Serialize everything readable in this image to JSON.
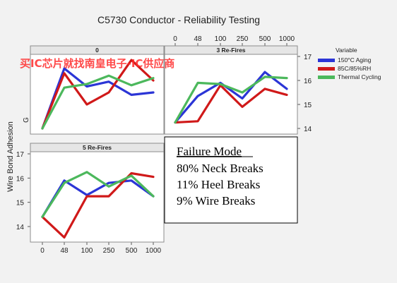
{
  "watermark": "买IC芯片就找南皇电子-IC供应商",
  "chart_data": {
    "type": "line",
    "title": "C5730 Conductor - Reliability Testing",
    "ylabel": "Wire Bond Adhesion",
    "categories": [
      "0",
      "48",
      "100",
      "250",
      "500",
      "1000"
    ],
    "ylim": [
      13.5,
      17.2
    ],
    "yticks": [
      14,
      15,
      16,
      17
    ],
    "colors": {
      "150C": "#2b35d6",
      "85C": "#d01919",
      "thermal": "#4cb85c"
    },
    "legend": {
      "title": "Variable",
      "entries": [
        {
          "key": "150C",
          "label": "150°C Aging"
        },
        {
          "key": "85C",
          "label": "85C/85%RH"
        },
        {
          "key": "thermal",
          "label": "Thermal Cycling"
        }
      ]
    },
    "panels": [
      {
        "strip": "0",
        "extra_label": "G",
        "series": [
          {
            "key": "150C",
            "values": [
              14.0,
              16.5,
              15.75,
              15.95,
              15.4,
              15.5
            ]
          },
          {
            "key": "85C",
            "values": [
              14.0,
              16.3,
              15.0,
              15.5,
              16.85,
              16.0
            ]
          },
          {
            "key": "thermal",
            "values": [
              14.0,
              15.7,
              15.85,
              16.2,
              15.8,
              16.1
            ]
          }
        ]
      },
      {
        "strip": "3 Re-Fires",
        "series": [
          {
            "key": "150C",
            "values": [
              14.25,
              15.35,
              15.9,
              15.25,
              16.35,
              15.65
            ]
          },
          {
            "key": "85C",
            "values": [
              14.25,
              14.3,
              15.8,
              14.9,
              15.65,
              15.4
            ]
          },
          {
            "key": "thermal",
            "values": [
              14.25,
              15.9,
              15.85,
              15.5,
              16.15,
              16.1
            ]
          }
        ]
      },
      {
        "strip": "5 Re-Fires",
        "series": [
          {
            "key": "150C",
            "values": [
              14.4,
              15.9,
              15.3,
              15.8,
              15.9,
              15.25
            ]
          },
          {
            "key": "85C",
            "values": [
              14.4,
              13.55,
              15.25,
              15.25,
              16.2,
              16.05
            ]
          },
          {
            "key": "thermal",
            "values": [
              14.4,
              15.8,
              16.25,
              15.65,
              16.1,
              15.25
            ]
          }
        ]
      }
    ]
  },
  "failure_mode": {
    "title": "Failure Mode",
    "lines": [
      "80% Neck Breaks",
      "11% Heel Breaks",
      "9% Wire Breaks"
    ]
  }
}
